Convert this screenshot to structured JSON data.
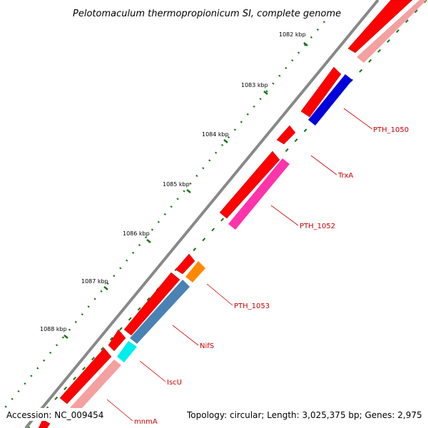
{
  "title": "Pelotomaculum thermopropionicum SI, complete genome",
  "footer": {
    "accession": "Accession: NC_009454",
    "topology": "Topology: circular; Length: 3,025,375 bp; Genes: 2,975"
  },
  "scale": {
    "unit": "kbp",
    "ticks": [
      "1082 kbp",
      "1083 kbp",
      "1084 kbp",
      "1085 kbp",
      "1086 kbp",
      "1087 kbp",
      "1088 kbp"
    ]
  },
  "colors": {
    "backbone": "#808080",
    "forward": "#ff0000",
    "reverse_faded": "#f4a0a0",
    "label": "#cc0000",
    "tick": "#117711",
    "blue": "#0000dd",
    "magenta": "#ff33aa",
    "orange": "#ff8800",
    "steelblue": "#4a82b4",
    "cyan": "#00eeee"
  },
  "genes": [
    {
      "label": "PTH_1050"
    },
    {
      "label": "TrxA"
    },
    {
      "label": "PTH_1052"
    },
    {
      "label": "PTH_1053"
    },
    {
      "label": "NifS"
    },
    {
      "label": "IscU"
    },
    {
      "label": "mnmA"
    }
  ]
}
